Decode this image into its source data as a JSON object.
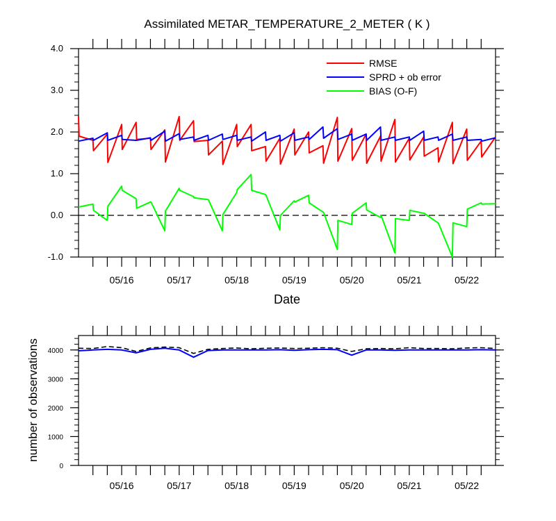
{
  "chart_data": [
    {
      "type": "line",
      "title": "Assimilated METAR_TEMPERATURE_2_METER ( K )",
      "xlabel": "Date",
      "ylabel": "",
      "x_start": "05/15 06Z",
      "x_end": "05/22 12Z",
      "xlim": [
        0,
        7.25
      ],
      "ylim": [
        -1.0,
        4.0
      ],
      "y_ticks": [
        "-1.0",
        "0.0",
        "1.0",
        "2.0",
        "3.0",
        "4.0"
      ],
      "x_tick_labels": [
        "05/16",
        "05/17",
        "05/18",
        "05/19",
        "05/20",
        "05/21",
        "05/22"
      ],
      "x_tick_days": [
        0.75,
        1.75,
        2.75,
        3.75,
        4.75,
        5.75,
        6.75
      ],
      "reference_line": {
        "y": 0.0,
        "style": "dashed"
      },
      "legend_position": "top-right",
      "series": [
        {
          "name": "RMSE",
          "color": "#ff0000",
          "x": [
            0,
            0.01,
            0.25,
            0.26,
            0.5,
            0.51,
            0.75,
            0.76,
            1.0,
            1.01,
            1.25,
            1.26,
            1.5,
            1.51,
            1.75,
            1.76,
            2.0,
            2.01,
            2.25,
            2.26,
            2.5,
            2.51,
            2.75,
            2.76,
            3.0,
            3.01,
            3.25,
            3.26,
            3.5,
            3.51,
            3.75,
            3.76,
            4.0,
            4.01,
            4.25,
            4.26,
            4.5,
            4.51,
            4.75,
            4.76,
            5.0,
            5.01,
            5.25,
            5.26,
            5.5,
            5.51,
            5.75,
            5.76,
            6.0,
            6.01,
            6.25,
            6.26,
            6.5,
            6.51,
            6.75,
            6.76,
            7.0,
            7.01,
            7.25
          ],
          "y": [
            2.38,
            1.9,
            1.8,
            1.55,
            1.95,
            1.27,
            2.18,
            1.58,
            2.23,
            1.82,
            1.85,
            1.58,
            2.05,
            1.28,
            2.37,
            1.8,
            2.27,
            1.77,
            1.8,
            1.45,
            1.78,
            1.22,
            2.18,
            1.65,
            2.18,
            1.55,
            1.65,
            1.3,
            1.85,
            1.23,
            2.07,
            1.45,
            2.0,
            1.5,
            1.67,
            1.25,
            2.35,
            1.3,
            2.08,
            1.32,
            1.95,
            1.25,
            1.9,
            1.3,
            2.3,
            1.28,
            1.85,
            1.33,
            1.88,
            1.42,
            1.62,
            1.28,
            2.23,
            1.24,
            2.07,
            1.32,
            1.78,
            1.4,
            1.88
          ]
        },
        {
          "name": "SPRD + ob error",
          "color": "#0000ff",
          "x": [
            0,
            0.25,
            0.26,
            0.5,
            0.51,
            0.75,
            0.76,
            1.0,
            1.01,
            1.25,
            1.26,
            1.5,
            1.51,
            1.75,
            1.76,
            2.0,
            2.01,
            2.25,
            2.26,
            2.5,
            2.51,
            2.75,
            2.76,
            3.0,
            3.01,
            3.25,
            3.26,
            3.5,
            3.51,
            3.75,
            3.76,
            4.0,
            4.01,
            4.25,
            4.26,
            4.5,
            4.51,
            4.75,
            4.76,
            5.0,
            5.01,
            5.25,
            5.26,
            5.5,
            5.51,
            5.75,
            5.76,
            6.0,
            6.01,
            6.25,
            6.26,
            6.5,
            6.51,
            6.75,
            6.76,
            7.0,
            7.01,
            7.25
          ],
          "y": [
            1.78,
            1.85,
            1.8,
            1.98,
            1.8,
            1.92,
            1.82,
            1.8,
            1.8,
            1.86,
            1.8,
            2.02,
            1.78,
            1.96,
            1.82,
            1.88,
            1.8,
            1.92,
            1.8,
            1.95,
            1.82,
            1.92,
            1.8,
            1.88,
            1.78,
            2.0,
            1.8,
            1.92,
            1.78,
            1.98,
            1.8,
            1.88,
            1.82,
            2.12,
            1.85,
            2.08,
            1.82,
            1.95,
            1.8,
            1.95,
            1.8,
            2.12,
            1.8,
            1.88,
            1.8,
            1.88,
            1.8,
            2.02,
            1.8,
            1.88,
            1.8,
            1.95,
            1.8,
            1.88,
            1.8,
            1.82,
            1.78,
            1.86
          ]
        },
        {
          "name": "BIAS (O-F)",
          "color": "#00ff00",
          "x": [
            0,
            0.25,
            0.26,
            0.5,
            0.51,
            0.75,
            0.76,
            1.0,
            1.01,
            1.25,
            1.26,
            1.5,
            1.51,
            1.75,
            1.76,
            2.0,
            2.01,
            2.25,
            2.26,
            2.5,
            2.51,
            2.75,
            2.76,
            3.0,
            3.01,
            3.25,
            3.26,
            3.5,
            3.51,
            3.75,
            3.76,
            4.0,
            4.01,
            4.25,
            4.26,
            4.5,
            4.51,
            4.75,
            4.76,
            5.0,
            5.01,
            5.25,
            5.26,
            5.5,
            5.51,
            5.75,
            5.76,
            6.0,
            6.01,
            6.25,
            6.26,
            6.5,
            6.51,
            6.75,
            6.76,
            7.0,
            7.01,
            7.25
          ],
          "y": [
            0.2,
            0.27,
            0.12,
            -0.12,
            0.22,
            0.7,
            0.6,
            0.4,
            0.17,
            0.32,
            0.32,
            -0.37,
            0.1,
            0.65,
            0.6,
            0.45,
            0.42,
            0.38,
            0.37,
            -0.37,
            0.02,
            0.55,
            0.62,
            0.98,
            0.6,
            0.5,
            0.48,
            -0.35,
            0.0,
            0.35,
            0.32,
            0.48,
            0.3,
            0.08,
            0.07,
            -0.82,
            -0.12,
            -0.22,
            0.05,
            0.3,
            0.13,
            -0.05,
            0.0,
            -0.9,
            -0.08,
            -0.12,
            0.12,
            0.05,
            0.05,
            -0.18,
            -0.2,
            -1.0,
            -0.18,
            -0.27,
            0.15,
            0.3,
            0.27,
            0.28
          ]
        }
      ]
    },
    {
      "type": "line",
      "title": "",
      "xlabel": "",
      "ylabel": "number of observations",
      "x_start": "05/15 06Z",
      "x_end": "05/22 12Z",
      "xlim": [
        0,
        7.25
      ],
      "ylim": [
        0,
        4500
      ],
      "y_ticks": [
        "0",
        "1000",
        "2000",
        "3000",
        "4000"
      ],
      "x_tick_labels": [
        "05/16",
        "05/17",
        "05/18",
        "05/19",
        "05/20",
        "05/21",
        "05/22"
      ],
      "x_tick_days": [
        0.75,
        1.75,
        2.75,
        3.75,
        4.75,
        5.75,
        6.75
      ],
      "series": [
        {
          "name": "",
          "color": "#000000",
          "style": "dashed",
          "x": [
            0,
            0.25,
            0.5,
            0.75,
            1.0,
            1.25,
            1.5,
            1.75,
            2.0,
            2.25,
            2.5,
            2.75,
            3.0,
            3.25,
            3.5,
            3.75,
            4.0,
            4.25,
            4.5,
            4.75,
            5.0,
            5.25,
            5.5,
            5.75,
            6.0,
            6.25,
            6.5,
            6.75,
            7.0,
            7.25
          ],
          "y": [
            4060,
            4050,
            4120,
            4080,
            3950,
            4070,
            4100,
            4080,
            3880,
            4020,
            4050,
            4070,
            4040,
            4060,
            4070,
            4050,
            4060,
            4080,
            4060,
            3950,
            4040,
            4050,
            4040,
            4080,
            4050,
            4050,
            4040,
            4070,
            4080,
            4050
          ]
        },
        {
          "name": "",
          "color": "#0000ff",
          "x": [
            0,
            0.25,
            0.5,
            0.75,
            1.0,
            1.25,
            1.5,
            1.75,
            2.0,
            2.25,
            2.5,
            2.75,
            3.0,
            3.25,
            3.5,
            3.75,
            4.0,
            4.25,
            4.5,
            4.75,
            5.0,
            5.25,
            5.5,
            5.75,
            6.0,
            6.25,
            6.5,
            6.75,
            7.0,
            7.25
          ],
          "y": [
            3970,
            4000,
            4020,
            4000,
            3900,
            4020,
            4060,
            4000,
            3750,
            3980,
            4000,
            4000,
            4000,
            4000,
            4010,
            3990,
            4010,
            4020,
            4010,
            3820,
            4000,
            4000,
            3990,
            4000,
            4000,
            4000,
            4000,
            4000,
            4010,
            4000
          ]
        }
      ]
    }
  ]
}
